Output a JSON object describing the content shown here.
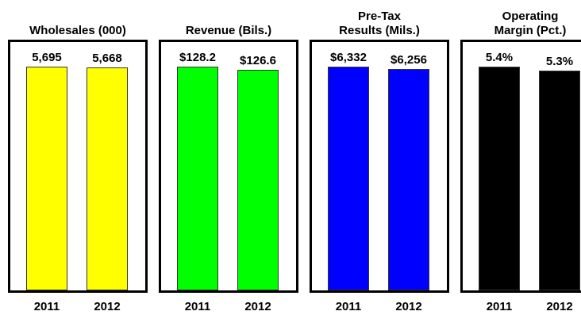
{
  "chart_data": [
    {
      "type": "bar",
      "title": "Wholesales (000)",
      "categories": [
        "2011",
        "2012"
      ],
      "values": [
        5695,
        5668
      ],
      "value_labels": [
        "5,695",
        "5,668"
      ],
      "color": "#FFFF00"
    },
    {
      "type": "bar",
      "title": "Revenue (Bils.)",
      "categories": [
        "2011",
        "2012"
      ],
      "values": [
        128.2,
        126.6
      ],
      "value_labels": [
        "$128.2",
        "$126.6"
      ],
      "color": "#00FF00"
    },
    {
      "type": "bar",
      "title": "Pre-Tax\nResults (Mils.)",
      "categories": [
        "2011",
        "2012"
      ],
      "values": [
        6332,
        6256
      ],
      "value_labels": [
        "$6,332",
        "$6,256"
      ],
      "color": "#0000FF"
    },
    {
      "type": "bar",
      "title": "Operating\nMargin (Pct.)",
      "categories": [
        "2011",
        "2012"
      ],
      "values": [
        5.4,
        5.3
      ],
      "value_labels": [
        "5.4%",
        "5.3%"
      ],
      "color": "#000000"
    }
  ]
}
